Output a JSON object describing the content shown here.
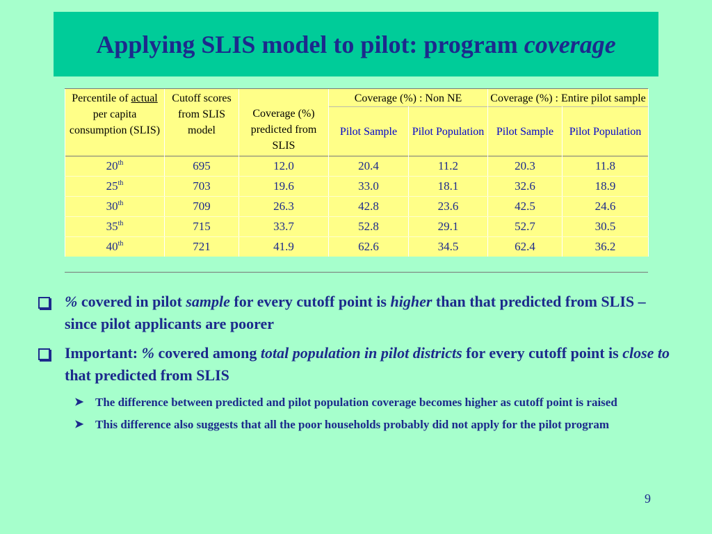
{
  "title": {
    "text": "Applying SLIS model to pilot: program ",
    "italic": "coverage"
  },
  "table": {
    "head": {
      "col1": {
        "pre": "Percentile of ",
        "underline": "actual",
        "post": " per capita consumption (SLIS)"
      },
      "col2": "Cutoff scores from SLIS model",
      "col3": "Coverage (%) predicted from SLIS",
      "group1": "Coverage (%) : Non NE",
      "group2": "Coverage (%) : Entire pilot sample",
      "sub": [
        "Pilot Sample",
        "Pilot Population",
        "Pilot Sample",
        "Pilot Population"
      ]
    },
    "rows": [
      {
        "pct": "20",
        "sup": "th",
        "cutoff": "695",
        "pred": "12.0",
        "nne_sample": "20.4",
        "nne_pop": "11.2",
        "all_sample": "20.3",
        "all_pop": "11.8"
      },
      {
        "pct": "25",
        "sup": "th",
        "cutoff": "703",
        "pred": "19.6",
        "nne_sample": "33.0",
        "nne_pop": "18.1",
        "all_sample": "32.6",
        "all_pop": "18.9"
      },
      {
        "pct": "30",
        "sup": "th",
        "cutoff": "709",
        "pred": "26.3",
        "nne_sample": "42.8",
        "nne_pop": "23.6",
        "all_sample": "42.5",
        "all_pop": "24.6"
      },
      {
        "pct": "35",
        "sup": "th",
        "cutoff": "715",
        "pred": "33.7",
        "nne_sample": "52.8",
        "nne_pop": "29.1",
        "all_sample": "52.7",
        "all_pop": "30.5"
      },
      {
        "pct": "40",
        "sup": "th",
        "cutoff": "721",
        "pred": "41.9",
        "nne_sample": "62.6",
        "nne_pop": "34.5",
        "all_sample": "62.4",
        "all_pop": "36.2"
      }
    ]
  },
  "bullets": {
    "b1": {
      "p1": "%",
      "p2": " covered in pilot ",
      "p3": "sample",
      "p4": " for every cutoff point is ",
      "p5": "higher",
      "p6": " than that predicted from SLIS –since pilot applicants are poorer"
    },
    "b2": {
      "p1": "Important: ",
      "p2": "%",
      "p3": " covered among ",
      "p4": "total population in pilot districts",
      "p5": " for every cutoff point is ",
      "p6": "close to",
      "p7": " that predicted from SLIS"
    },
    "sub": [
      "The difference between predicted and pilot population coverage becomes higher as cutoff point is raised",
      "This difference also suggests that all the poor households probably did not apply for the pilot program"
    ]
  },
  "page_number": "9",
  "icons": {
    "bullet": "hollow-square-bullet-icon",
    "subbullet": "arrowhead-bullet-icon"
  },
  "colors": {
    "background": "#a6ffcc",
    "title_bar": "#00cc99",
    "text": "#1c2a8c",
    "table_bg": "#ffff88",
    "subheader": "#0000cc"
  }
}
